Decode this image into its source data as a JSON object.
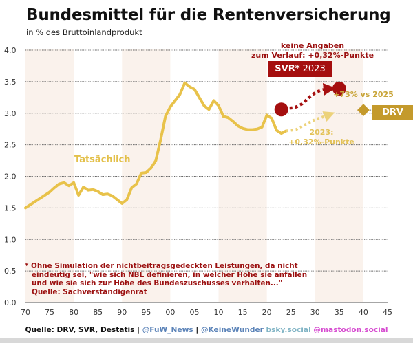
{
  "header": {
    "title": "Bundesmittel für die Rentenversicherung",
    "subtitle": "in % des Bruttoinlandprodukt"
  },
  "chart_data": {
    "type": "line",
    "title": "Bundesmittel für die Rentenversicherung",
    "subtitle": "in % des Bruttoinlandprodukt",
    "xlabel": "",
    "ylabel": "",
    "xlim": [
      1970,
      2045
    ],
    "ylim": [
      0.0,
      4.0
    ],
    "grid": true,
    "x_tick_labels": [
      "70",
      "75",
      "80",
      "85",
      "90",
      "95",
      "00",
      "05",
      "10",
      "15",
      "20",
      "25",
      "30",
      "35",
      "40",
      "45"
    ],
    "x_tick_values": [
      1970,
      1975,
      1980,
      1985,
      1990,
      1995,
      2000,
      2005,
      2010,
      2015,
      2020,
      2025,
      2030,
      2035,
      2040,
      2045
    ],
    "y_tick_labels": [
      "0.0",
      "0.5",
      "1.0",
      "1.5",
      "2.0",
      "2.5",
      "3.0",
      "3.5",
      "4.0"
    ],
    "y_tick_values": [
      0.0,
      0.5,
      1.0,
      1.5,
      2.0,
      2.5,
      3.0,
      3.5,
      4.0
    ],
    "shaded_bands": [
      [
        1970,
        1980
      ],
      [
        1990,
        2000
      ],
      [
        2010,
        2020
      ],
      [
        2030,
        2040
      ]
    ],
    "series": [
      {
        "name": "Tatsächlich",
        "color": "#e8c24a",
        "x": [
          1970,
          1971,
          1972,
          1973,
          1974,
          1975,
          1976,
          1977,
          1978,
          1979,
          1980,
          1981,
          1982,
          1983,
          1984,
          1985,
          1986,
          1987,
          1988,
          1989,
          1990,
          1991,
          1992,
          1993,
          1994,
          1995,
          1996,
          1997,
          1998,
          1999,
          2000,
          2001,
          2002,
          2003,
          2004,
          2005,
          2006,
          2007,
          2008,
          2009,
          2010,
          2011,
          2012,
          2013,
          2014,
          2015,
          2016,
          2017,
          2018,
          2019,
          2020,
          2021,
          2022,
          2023,
          2024
        ],
        "values": [
          1.5,
          1.55,
          1.6,
          1.65,
          1.7,
          1.75,
          1.82,
          1.88,
          1.9,
          1.85,
          1.9,
          1.7,
          1.83,
          1.78,
          1.79,
          1.76,
          1.71,
          1.72,
          1.69,
          1.63,
          1.57,
          1.63,
          1.82,
          1.88,
          2.05,
          2.06,
          2.13,
          2.25,
          2.58,
          2.95,
          3.1,
          3.2,
          3.3,
          3.48,
          3.42,
          3.38,
          3.25,
          3.12,
          3.06,
          3.2,
          3.12,
          2.95,
          2.93,
          2.87,
          2.8,
          2.76,
          2.74,
          2.74,
          2.75,
          2.78,
          2.97,
          2.92,
          2.73,
          2.68,
          2.72
        ]
      },
      {
        "name": "Tatsächlich (Fortschreibung +0,32%-Punkte)",
        "style": "dotted-arrow",
        "color": "#ecd27a",
        "x": [
          2024,
          2026,
          2028,
          2030,
          2032,
          2033
        ],
        "values": [
          2.72,
          2.74,
          2.82,
          2.9,
          2.95,
          2.98
        ]
      },
      {
        "name": "SVR* 2023",
        "style": "dotted-arrow",
        "color": "#a50f0f",
        "x": [
          2023,
          2035
        ],
        "values": [
          3.06,
          3.39
        ],
        "markers": [
          {
            "x": 2023,
            "value": 3.06
          },
          {
            "x": 2035,
            "value": 3.39
          }
        ]
      },
      {
        "name": "DRV",
        "color": "#c49a2c",
        "marker": "diamond",
        "x": [
          2040
        ],
        "values": [
          3.05
        ]
      }
    ],
    "annotations": [
      {
        "text": "keine Angaben",
        "color": "#9b1010"
      },
      {
        "text": "zum Verlauf: +0,32%-Punkte",
        "color": "#9b1010"
      },
      {
        "text": "SVR* 2023",
        "color": "#a50f0f"
      },
      {
        "text": "+73% vs 2025",
        "color": "#c9a53a"
      },
      {
        "text": "DRV",
        "color": "#c49a2c"
      },
      {
        "text": "2023:",
        "color": "#e3c258"
      },
      {
        "text": "+0,32%-Punkte",
        "color": "#e3c258"
      },
      {
        "text": "Tatsächlich",
        "color": "#e3c04a"
      }
    ]
  },
  "labels": {
    "tatsaechlich": "Tatsächlich",
    "svr_note_1": "keine Angaben",
    "svr_note_2": "zum Verlauf: +0,32%-Punkte",
    "svr_badge_bold": "SVR*",
    "svr_badge_year": "2023",
    "drv_delta": "+73% vs 2025",
    "drv_badge": "DRV",
    "gold_note_1": "2023:",
    "gold_note_2": "+0,32%-Punkte"
  },
  "footnote": {
    "line1": "* Ohne Simulation der nichtbeitragsgedeckten Leistungen, da nicht",
    "line2": "eindeutig sei, \"wie sich NBL definieren, in welcher Höhe sie anfallen",
    "line3": "und wie sie sich zur Höhe des Bundeszuschusses verhalten...\"",
    "line4": "Quelle: Sachverständigenrat"
  },
  "source": {
    "prefix": "Quelle: DRV, SVR, Destatis",
    "sep1": " | ",
    "handle1": "@FuW_News",
    "sep2": " | ",
    "handle2": "@KeineWunder",
    "handle2_domain": " bsky.social",
    "handle3": " @mastodon.social",
    "colors": {
      "prefix": "#111111",
      "handle1": "#5b83b8",
      "handle2": "#5b83b8",
      "handle2_domain": "#7fb3c4",
      "handle3": "#d64bd0"
    }
  }
}
